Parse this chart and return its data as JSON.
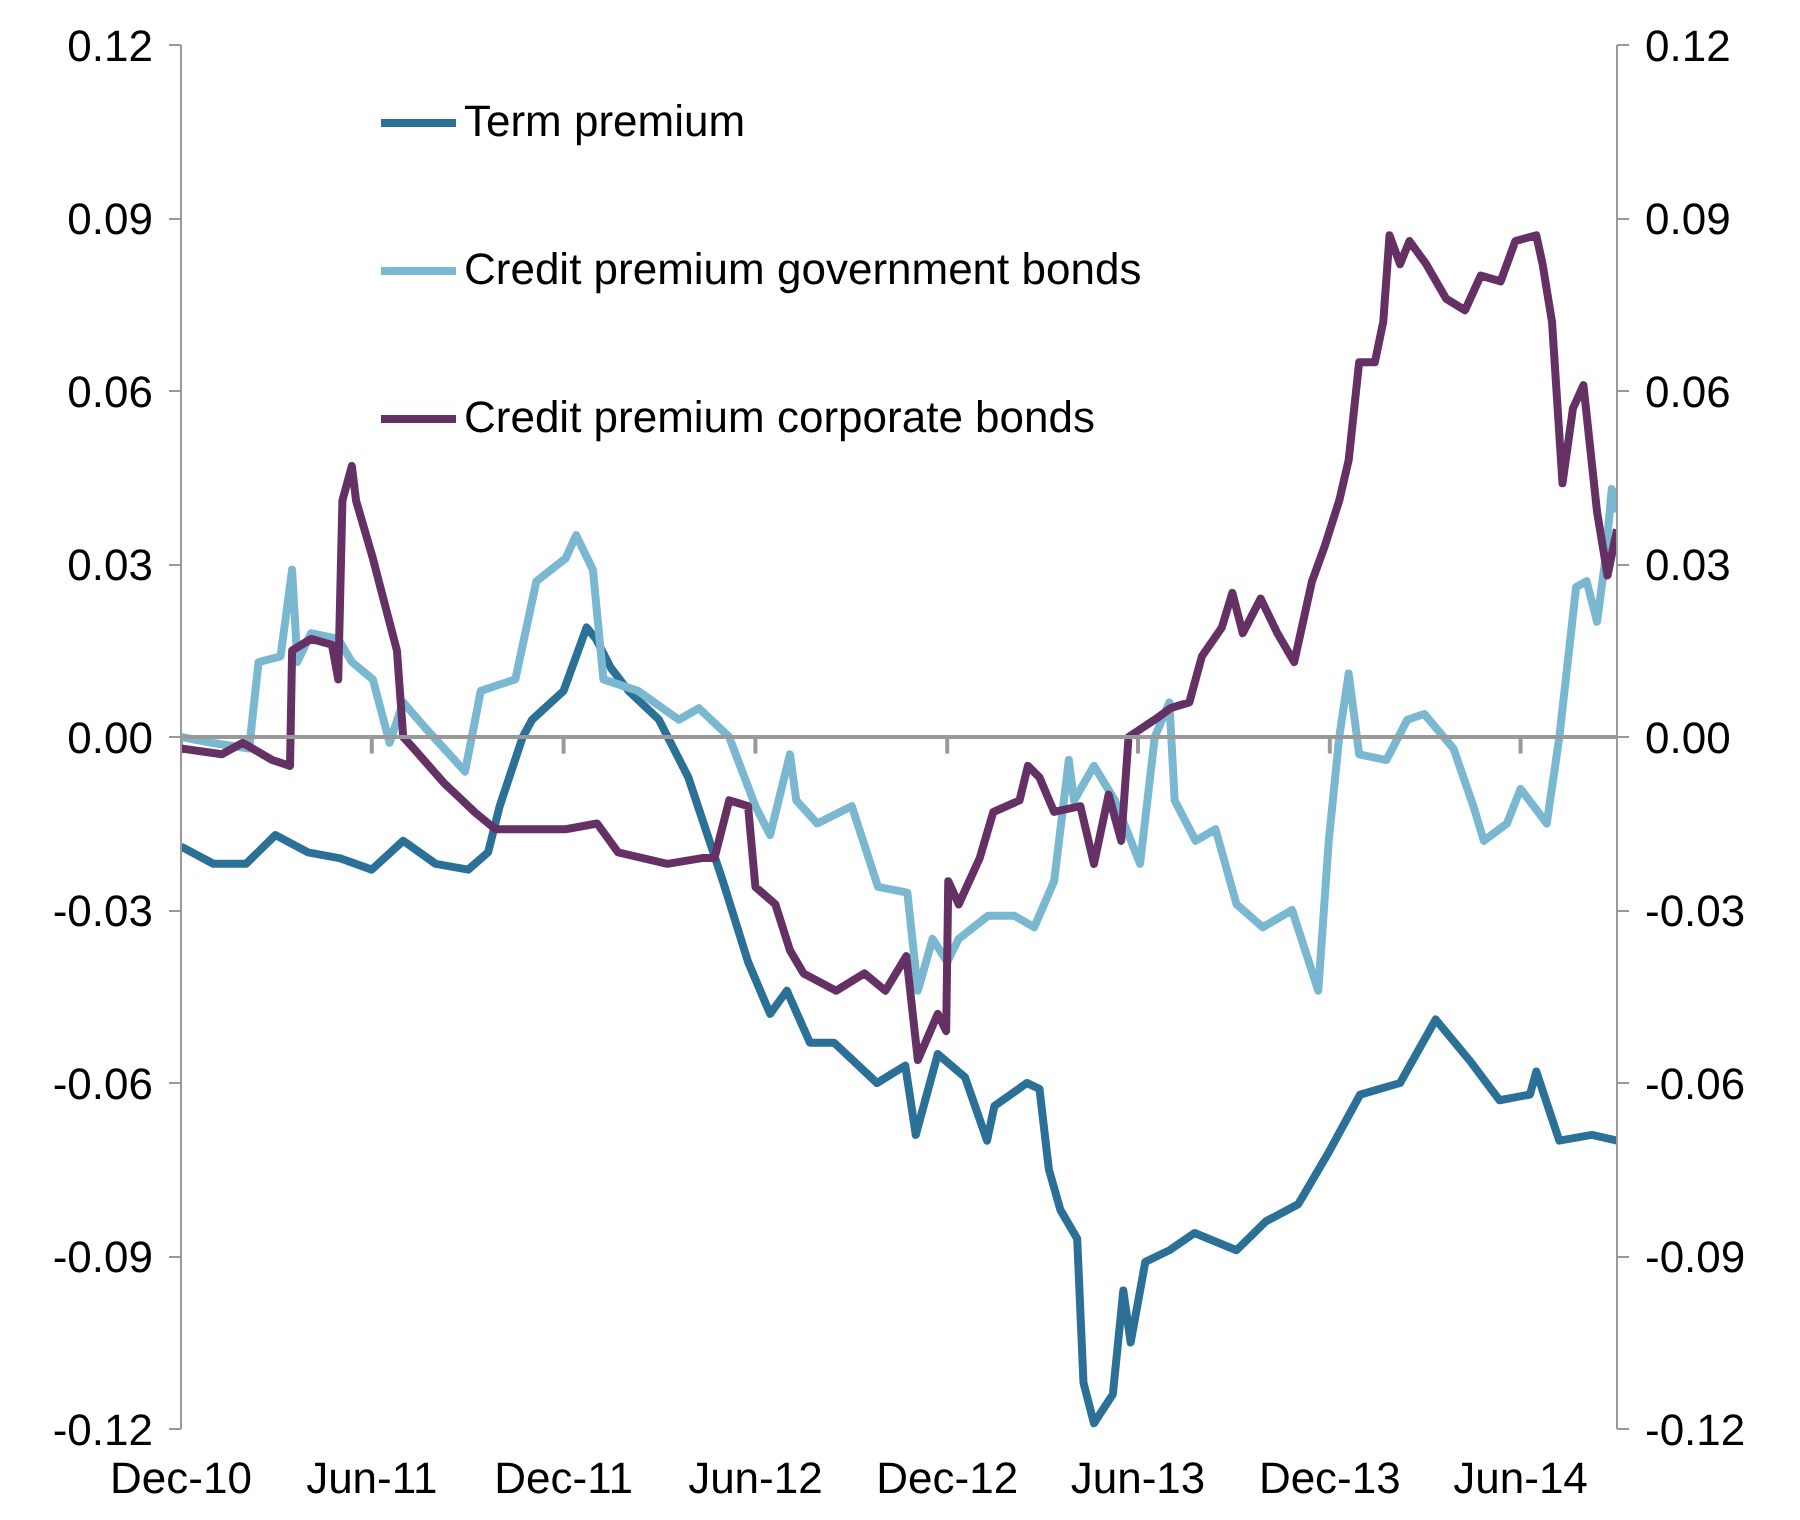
{
  "chart_data": {
    "type": "line",
    "xlim": [
      "2010-12-01",
      "2014-09-01"
    ],
    "xticks": [
      {
        "value": "2010-12-01",
        "label": "Dec-10"
      },
      {
        "value": "2011-06-01",
        "label": "Jun-11"
      },
      {
        "value": "2011-12-01",
        "label": "Dec-11"
      },
      {
        "value": "2012-06-01",
        "label": "Jun-12"
      },
      {
        "value": "2012-12-01",
        "label": "Dec-12"
      },
      {
        "value": "2013-06-01",
        "label": "Jun-13"
      },
      {
        "value": "2013-12-01",
        "label": "Dec-13"
      },
      {
        "value": "2014-06-01",
        "label": "Jun-14"
      }
    ],
    "ylim": [
      -0.12,
      0.12
    ],
    "yticks": [
      -0.12,
      -0.09,
      -0.06,
      -0.03,
      {
        "value": 0,
        "label": "0.00"
      },
      0.03,
      0.06,
      0.09,
      0.12
    ],
    "y2lim": [
      -0.12,
      0.12
    ],
    "y2ticks": [
      -0.12,
      -0.09,
      -0.06,
      -0.03,
      {
        "value": 0,
        "label": "0.00"
      },
      0.03,
      0.06,
      0.09,
      0.12
    ],
    "ref_lines": [
      {
        "axis": "y",
        "value": 0,
        "color": "#999999"
      }
    ],
    "grid": false,
    "legend": "top left",
    "line_style": "solid",
    "marker": "none",
    "series": [
      {
        "name": "Term premium",
        "color": "#2a7097",
        "x": [
          "2010-12-01",
          "2011-01-01",
          "2011-02-01",
          "2011-03-01",
          "2011-04-01",
          "2011-05-01",
          "2011-06-01",
          "2011-07-01",
          "2011-08-01",
          "2011-09-01",
          "2011-09-20",
          "2011-10-01",
          "2011-10-23",
          "2011-11-01",
          "2011-12-01",
          "2011-12-23",
          "2012-01-01",
          "2012-01-15",
          "2012-02-01",
          "2012-03-01",
          "2012-03-29",
          "2012-05-01",
          "2012-05-25",
          "2012-06-15",
          "2012-07-01",
          "2012-07-23",
          "2012-08-15",
          "2012-09-25",
          "2012-10-22",
          "2012-11-01",
          "2012-11-22",
          "2012-12-18",
          "2013-01-08",
          "2013-01-15",
          "2013-02-15",
          "2013-02-27",
          "2013-03-08",
          "2013-03-19",
          "2013-04-04",
          "2013-04-10",
          "2013-04-20",
          "2013-05-08",
          "2013-05-18",
          "2013-05-25",
          "2013-06-08",
          "2013-07-01",
          "2013-07-25",
          "2013-09-03",
          "2013-10-01",
          "2013-11-01",
          "2013-11-30",
          "2013-12-30",
          "2014-02-06",
          "2014-03-12",
          "2014-04-13",
          "2014-05-12",
          "2014-06-10",
          "2014-06-16",
          "2014-07-08",
          "2014-08-08",
          "2014-09-01"
        ],
        "values": [
          -0.019,
          -0.022,
          -0.022,
          -0.017,
          -0.02,
          -0.021,
          -0.023,
          -0.018,
          -0.022,
          -0.023,
          -0.02,
          -0.012,
          0.0,
          0.003,
          0.008,
          0.019,
          0.017,
          0.012,
          0.008,
          0.003,
          -0.007,
          -0.025,
          -0.039,
          -0.048,
          -0.044,
          -0.053,
          -0.053,
          -0.06,
          -0.057,
          -0.069,
          -0.055,
          -0.059,
          -0.07,
          -0.064,
          -0.06,
          -0.061,
          -0.075,
          -0.082,
          -0.087,
          -0.112,
          -0.119,
          -0.114,
          -0.096,
          -0.105,
          -0.091,
          -0.089,
          -0.086,
          -0.089,
          -0.084,
          -0.081,
          -0.072,
          -0.062,
          -0.06,
          -0.049,
          -0.056,
          -0.063,
          -0.062,
          -0.058,
          -0.07,
          -0.069,
          -0.07
        ]
      },
      {
        "name": "Credit premium government bonds",
        "color": "#7ab8d2",
        "x": [
          "2010-12-01",
          "2010-12-30",
          "2011-02-04",
          "2011-02-13",
          "2011-03-06",
          "2011-03-17",
          "2011-03-22",
          "2011-04-04",
          "2011-04-30",
          "2011-05-13",
          "2011-06-02",
          "2011-06-18",
          "2011-07-01",
          "2011-07-20",
          "2011-08-09",
          "2011-08-29",
          "2011-09-13",
          "2011-10-16",
          "2011-11-05",
          "2011-12-03",
          "2011-12-13",
          "2011-12-29",
          "2012-01-08",
          "2012-02-10",
          "2012-03-20",
          "2012-04-08",
          "2012-05-07",
          "2012-06-01",
          "2012-06-15",
          "2012-07-04",
          "2012-07-10",
          "2012-07-30",
          "2012-09-01",
          "2012-09-26",
          "2012-10-24",
          "2012-11-03",
          "2012-11-17",
          "2012-12-01",
          "2012-12-12",
          "2013-01-09",
          "2013-02-03",
          "2013-02-22",
          "2013-03-13",
          "2013-03-27",
          "2013-04-01",
          "2013-04-20",
          "2013-05-10",
          "2013-06-03",
          "2013-06-17",
          "2013-07-01",
          "2013-07-06",
          "2013-07-26",
          "2013-08-14",
          "2013-09-03",
          "2013-09-28",
          "2013-10-26",
          "2013-11-20",
          "2013-11-30",
          "2013-12-10",
          "2013-12-19",
          "2013-12-29",
          "2014-01-24",
          "2014-02-13",
          "2014-03-01",
          "2014-03-29",
          "2014-04-17",
          "2014-04-27",
          "2014-05-19",
          "2014-06-01",
          "2014-06-26",
          "2014-07-08",
          "2014-07-24",
          "2014-08-03",
          "2014-08-13",
          "2014-08-21",
          "2014-08-27",
          "2014-09-01"
        ],
        "values": [
          0.0,
          -0.001,
          -0.002,
          0.013,
          0.014,
          0.029,
          0.013,
          0.018,
          0.017,
          0.013,
          0.01,
          -0.001,
          0.006,
          0.002,
          -0.002,
          -0.006,
          0.008,
          0.01,
          0.027,
          0.031,
          0.035,
          0.029,
          0.01,
          0.008,
          0.003,
          0.005,
          0.0,
          -0.012,
          -0.017,
          -0.003,
          -0.011,
          -0.015,
          -0.012,
          -0.026,
          -0.027,
          -0.044,
          -0.035,
          -0.039,
          -0.035,
          -0.031,
          -0.031,
          -0.033,
          -0.025,
          -0.004,
          -0.011,
          -0.005,
          -0.011,
          -0.022,
          0.0,
          0.006,
          -0.011,
          -0.018,
          -0.016,
          -0.029,
          -0.033,
          -0.03,
          -0.044,
          -0.018,
          0.0,
          0.011,
          -0.003,
          -0.004,
          0.003,
          0.004,
          -0.002,
          -0.012,
          -0.018,
          -0.015,
          -0.009,
          -0.015,
          0.0,
          0.026,
          0.027,
          0.02,
          0.031,
          0.043,
          0.039
        ]
      },
      {
        "name": "Credit premium corporate bonds",
        "color": "#653165",
        "x": [
          "2010-12-01",
          "2011-01-09",
          "2011-01-29",
          "2011-02-26",
          "2011-03-15",
          "2011-03-17",
          "2011-04-04",
          "2011-04-24",
          "2011-04-30",
          "2011-05-04",
          "2011-05-13",
          "2011-05-17",
          "2011-06-02",
          "2011-06-12",
          "2011-06-25",
          "2011-07-01",
          "2011-07-11",
          "2011-08-09",
          "2011-09-07",
          "2011-09-27",
          "2011-10-26",
          "2011-12-03",
          "2012-01-02",
          "2012-01-22",
          "2012-03-09",
          "2012-04-11",
          "2012-04-23",
          "2012-05-07",
          "2012-05-25",
          "2012-06-01",
          "2012-06-20",
          "2012-07-04",
          "2012-07-17",
          "2012-08-17",
          "2012-09-13",
          "2012-10-03",
          "2012-10-23",
          "2012-11-03",
          "2012-11-22",
          "2012-11-30",
          "2012-12-02",
          "2012-12-12",
          "2013-01-01",
          "2013-01-14",
          "2013-02-08",
          "2013-02-16",
          "2013-02-27",
          "2013-03-13",
          "2013-04-07",
          "2013-04-20",
          "2013-05-04",
          "2013-05-16",
          "2013-05-23",
          "2013-06-17",
          "2013-07-02",
          "2013-07-20",
          "2013-08-01",
          "2013-08-20",
          "2013-08-30",
          "2013-09-09",
          "2013-09-26",
          "2013-10-12",
          "2013-10-28",
          "2013-11-14",
          "2013-11-26",
          "2013-12-10",
          "2013-12-19",
          "2013-12-29",
          "2014-01-13",
          "2014-01-21",
          "2014-01-27",
          "2014-02-06",
          "2014-02-15",
          "2014-03-03",
          "2014-03-22",
          "2014-04-09",
          "2014-04-24",
          "2014-05-13",
          "2014-05-27",
          "2014-06-16",
          "2014-06-22",
          "2014-07-01",
          "2014-07-11",
          "2014-07-21",
          "2014-07-31",
          "2014-08-13",
          "2014-08-23",
          "2014-09-01"
        ],
        "values": [
          -0.002,
          -0.003,
          -0.001,
          -0.004,
          -0.005,
          0.015,
          0.017,
          0.016,
          0.01,
          0.041,
          0.047,
          0.041,
          0.031,
          0.024,
          0.015,
          0.0,
          -0.002,
          -0.008,
          -0.013,
          -0.016,
          -0.016,
          -0.016,
          -0.015,
          -0.02,
          -0.022,
          -0.021,
          -0.021,
          -0.011,
          -0.012,
          -0.026,
          -0.029,
          -0.037,
          -0.041,
          -0.044,
          -0.041,
          -0.044,
          -0.038,
          -0.056,
          -0.048,
          -0.051,
          -0.025,
          -0.029,
          -0.021,
          -0.013,
          -0.011,
          -0.005,
          -0.007,
          -0.013,
          -0.012,
          -0.022,
          -0.01,
          -0.018,
          0.0,
          0.003,
          0.005,
          0.006,
          0.014,
          0.019,
          0.025,
          0.018,
          0.024,
          0.018,
          0.013,
          0.027,
          0.033,
          0.041,
          0.048,
          0.065,
          0.065,
          0.072,
          0.087,
          0.082,
          0.086,
          0.082,
          0.076,
          0.074,
          0.08,
          0.079,
          0.086,
          0.087,
          0.082,
          0.072,
          0.044,
          0.057,
          0.061,
          0.039,
          0.028,
          0.036
        ]
      }
    ]
  }
}
